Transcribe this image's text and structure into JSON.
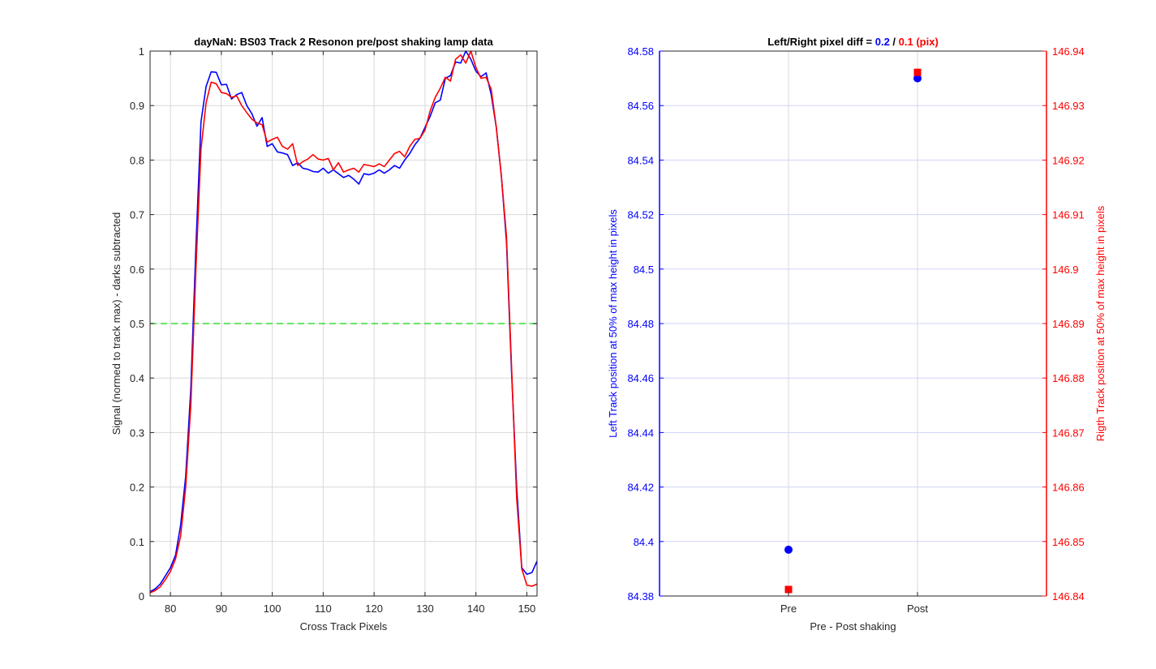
{
  "chart_data": [
    {
      "type": "line",
      "title": "dayNaN: BS03  Track 2 Resonon pre/post shaking lamp data",
      "xlabel": "Cross Track Pixels",
      "ylabel": "Signal (normed to track max) - darks subtracted",
      "xlim": [
        76,
        152
      ],
      "ylim": [
        0,
        1
      ],
      "xticks": [
        80,
        90,
        100,
        110,
        120,
        130,
        140,
        150
      ],
      "yticks": [
        0,
        0.1,
        0.2,
        0.3,
        0.4,
        0.5,
        0.6,
        0.7,
        0.8,
        0.9,
        1
      ],
      "grid": true,
      "threshold": 0.5,
      "colors": {
        "blue": "#0000ff",
        "red": "#ff0000",
        "threshold": "#33dd33"
      },
      "series": [
        {
          "color": "#0000ff",
          "x": [
            76,
            77,
            78,
            79,
            80,
            81,
            82,
            83,
            84,
            85,
            86,
            87,
            88,
            89,
            90,
            91,
            92,
            93,
            94,
            95,
            96,
            97,
            98,
            99,
            100,
            101,
            102,
            103,
            104,
            105,
            106,
            107,
            108,
            109,
            110,
            111,
            112,
            113,
            114,
            115,
            116,
            117,
            118,
            119,
            120,
            121,
            122,
            123,
            124,
            125,
            126,
            127,
            128,
            129,
            130,
            131,
            132,
            133,
            134,
            135,
            136,
            137,
            138,
            139,
            140,
            141,
            142,
            143,
            144,
            145,
            146,
            147,
            148,
            149,
            150,
            151,
            152
          ],
          "y": [
            0.008,
            0.013,
            0.022,
            0.037,
            0.052,
            0.075,
            0.13,
            0.22,
            0.38,
            0.64,
            0.87,
            0.935,
            0.962,
            0.961,
            0.938,
            0.939,
            0.912,
            0.92,
            0.924,
            0.9,
            0.885,
            0.862,
            0.878,
            0.825,
            0.83,
            0.815,
            0.813,
            0.81,
            0.79,
            0.795,
            0.785,
            0.783,
            0.779,
            0.778,
            0.785,
            0.776,
            0.782,
            0.775,
            0.768,
            0.772,
            0.765,
            0.756,
            0.775,
            0.773,
            0.776,
            0.782,
            0.776,
            0.782,
            0.79,
            0.785,
            0.8,
            0.812,
            0.828,
            0.84,
            0.86,
            0.88,
            0.905,
            0.91,
            0.95,
            0.955,
            0.98,
            0.978,
            1.0,
            0.985,
            0.963,
            0.953,
            0.96,
            0.92,
            0.86,
            0.77,
            0.65,
            0.41,
            0.2,
            0.052,
            0.04,
            0.043,
            0.064
          ]
        },
        {
          "color": "#ff0000",
          "x": [
            76,
            77,
            78,
            79,
            80,
            81,
            82,
            83,
            84,
            85,
            86,
            87,
            88,
            89,
            90,
            91,
            92,
            93,
            94,
            95,
            96,
            97,
            98,
            99,
            100,
            101,
            102,
            103,
            104,
            105,
            106,
            107,
            108,
            109,
            110,
            111,
            112,
            113,
            114,
            115,
            116,
            117,
            118,
            119,
            120,
            121,
            122,
            123,
            124,
            125,
            126,
            127,
            128,
            129,
            130,
            131,
            132,
            133,
            134,
            135,
            136,
            137,
            138,
            139,
            140,
            141,
            142,
            143,
            144,
            145,
            146,
            147,
            148,
            149,
            150,
            151,
            152
          ],
          "y": [
            0.006,
            0.01,
            0.017,
            0.03,
            0.045,
            0.068,
            0.11,
            0.2,
            0.35,
            0.6,
            0.82,
            0.905,
            0.943,
            0.94,
            0.924,
            0.922,
            0.915,
            0.918,
            0.9,
            0.887,
            0.875,
            0.868,
            0.865,
            0.833,
            0.838,
            0.842,
            0.825,
            0.82,
            0.83,
            0.79,
            0.797,
            0.802,
            0.81,
            0.802,
            0.8,
            0.803,
            0.782,
            0.795,
            0.778,
            0.782,
            0.785,
            0.778,
            0.792,
            0.79,
            0.788,
            0.793,
            0.788,
            0.8,
            0.812,
            0.816,
            0.806,
            0.825,
            0.838,
            0.84,
            0.855,
            0.89,
            0.915,
            0.932,
            0.952,
            0.945,
            0.985,
            0.993,
            0.978,
            1.0,
            0.97,
            0.95,
            0.952,
            0.93,
            0.86,
            0.77,
            0.66,
            0.42,
            0.18,
            0.05,
            0.02,
            0.018,
            0.022
          ]
        }
      ]
    },
    {
      "type": "scatter",
      "title": "Left/Right pixel diff = ",
      "title_left_value": "0.2",
      "title_sep": " / ",
      "title_right_value": "0.1 (pix)",
      "xlabel": "Pre - Post shaking",
      "ylabel_left": "Left Track position at 50% of max height in pixels",
      "ylabel_right": "Rigth Track position at 50% of max height in pixels",
      "categories": [
        "Pre",
        "Post"
      ],
      "ylim_left": [
        84.38,
        84.58
      ],
      "ylim_right": [
        146.84,
        146.94
      ],
      "yticks_left": [
        "84.38",
        "84.4",
        "84.42",
        "84.44",
        "84.46",
        "84.48",
        "84.5",
        "84.52",
        "84.54",
        "84.56",
        "84.58"
      ],
      "yticks_right": [
        "146.84",
        "146.85",
        "146.86",
        "146.87",
        "146.88",
        "146.89",
        "146.9",
        "146.91",
        "146.92",
        "146.93",
        "146.94"
      ],
      "colors": {
        "left": "#0000ff",
        "right": "#ff0000"
      },
      "series": [
        {
          "axis": "left",
          "marker": "circle",
          "color": "#0000ff",
          "values": [
            84.397,
            84.57
          ]
        },
        {
          "axis": "right",
          "marker": "square",
          "color": "#ff0000",
          "values": [
            146.8412,
            146.9361
          ]
        }
      ]
    }
  ]
}
